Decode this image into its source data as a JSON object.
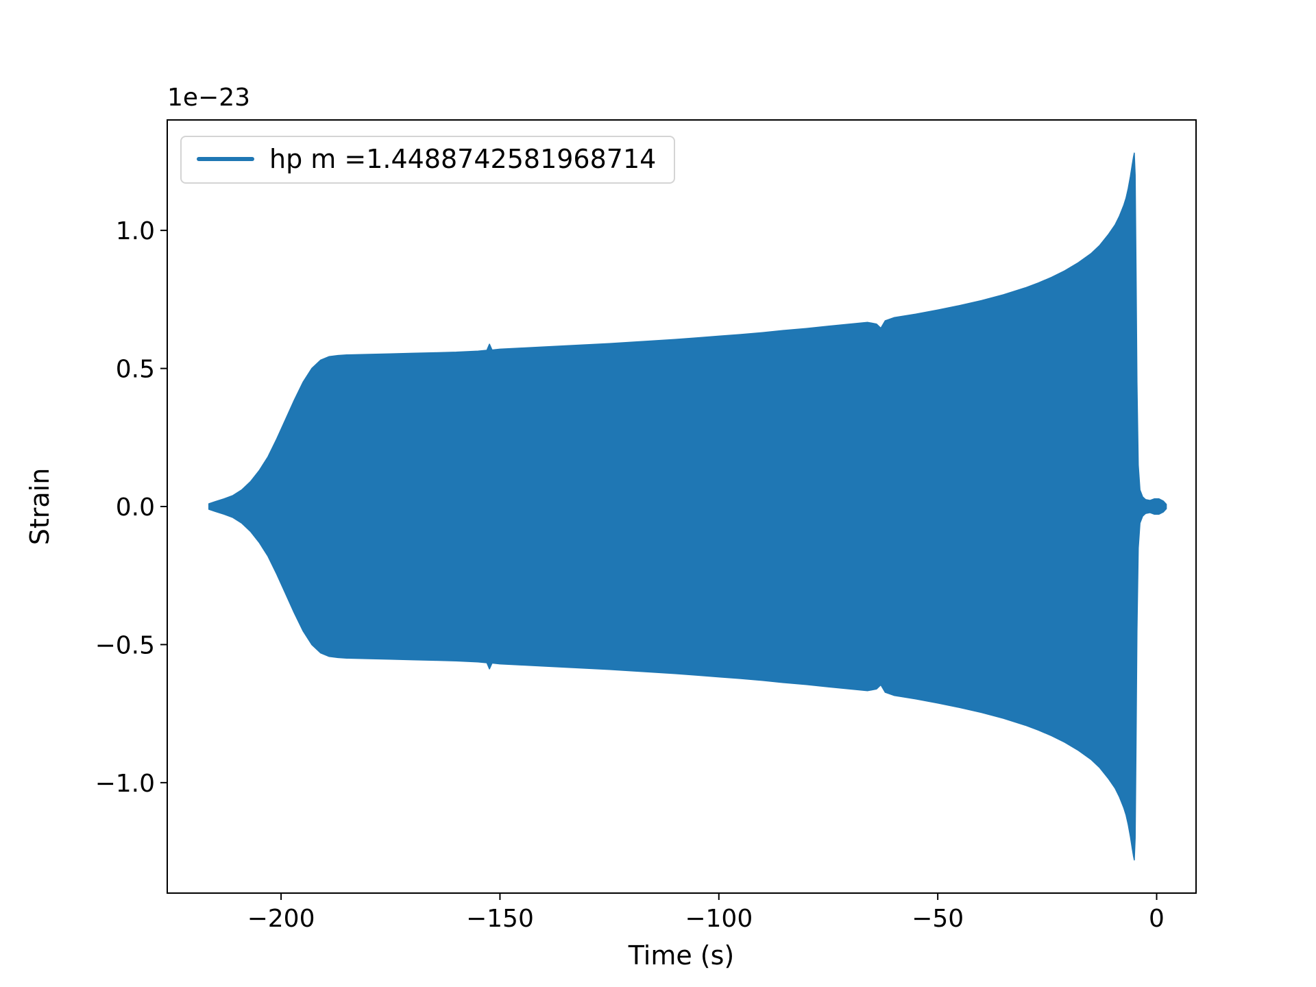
{
  "figure": {
    "background": "#ffffff"
  },
  "chart_data": {
    "type": "line",
    "title": "",
    "xlabel": "Time (s)",
    "ylabel": "Strain",
    "y_offset_text": "1e−23",
    "xlim": [
      -226,
      9
    ],
    "ylim": [
      -1.4,
      1.4
    ],
    "grid": false,
    "legend_position": "upper left",
    "xticks": [
      "−200",
      "−150",
      "−100",
      "−50",
      "0"
    ],
    "xtick_values": [
      -200,
      -150,
      -100,
      -50,
      0
    ],
    "yticks": [
      "−1.0",
      "−0.5",
      "0.0",
      "0.5",
      "1.0"
    ],
    "ytick_values": [
      -1.0,
      -0.5,
      0.0,
      0.5,
      1.0
    ],
    "legend": [
      {
        "label": "hp m =1.4488742581968714",
        "color": "#1f77b4"
      }
    ],
    "series": [
      {
        "name": "hp",
        "color": "#1f77b4",
        "description": "Dense oscillatory gravitational-wave chirp; rendered as filled amplitude envelope. Amplitudes in units of 1e-23 strain.",
        "envelope": {
          "t": [
            -216.5,
            -215,
            -213,
            -211,
            -209,
            -207,
            -205,
            -203,
            -201,
            -199,
            -197,
            -195,
            -193,
            -191,
            -189,
            -187,
            -185,
            -180,
            -175,
            -170,
            -165,
            -160,
            -155,
            -153,
            -152.4,
            -151.8,
            -150,
            -145,
            -140,
            -135,
            -130,
            -125,
            -120,
            -115,
            -110,
            -105,
            -100,
            -95,
            -90,
            -85,
            -80,
            -75,
            -70,
            -66,
            -64,
            -63,
            -62,
            -60,
            -55,
            -50,
            -45,
            -40,
            -35,
            -30,
            -27,
            -24,
            -21,
            -18,
            -15,
            -13,
            -11,
            -9.5,
            -8.5,
            -7.5,
            -7,
            -6.5,
            -6,
            -5.6,
            -5.3,
            -5.1,
            -4.9,
            -4.7,
            -4.5,
            -4.2,
            -3.8,
            -3.2,
            -2.5,
            -1.5,
            -0.5,
            0.5,
            1.5,
            2.2
          ],
          "amplitude": [
            0.01,
            0.018,
            0.028,
            0.04,
            0.06,
            0.09,
            0.13,
            0.18,
            0.245,
            0.315,
            0.385,
            0.45,
            0.5,
            0.53,
            0.543,
            0.547,
            0.549,
            0.551,
            0.553,
            0.555,
            0.557,
            0.559,
            0.563,
            0.566,
            0.588,
            0.567,
            0.57,
            0.574,
            0.578,
            0.582,
            0.586,
            0.59,
            0.595,
            0.6,
            0.605,
            0.611,
            0.617,
            0.623,
            0.63,
            0.638,
            0.645,
            0.653,
            0.661,
            0.667,
            0.661,
            0.646,
            0.673,
            0.684,
            0.697,
            0.712,
            0.728,
            0.746,
            0.767,
            0.792,
            0.81,
            0.83,
            0.854,
            0.882,
            0.916,
            0.946,
            0.986,
            1.02,
            1.052,
            1.092,
            1.117,
            1.152,
            1.196,
            1.236,
            1.266,
            1.28,
            1.2,
            0.85,
            0.45,
            0.15,
            0.06,
            0.035,
            0.025,
            0.022,
            0.028,
            0.028,
            0.02,
            0.008
          ]
        }
      }
    ]
  }
}
